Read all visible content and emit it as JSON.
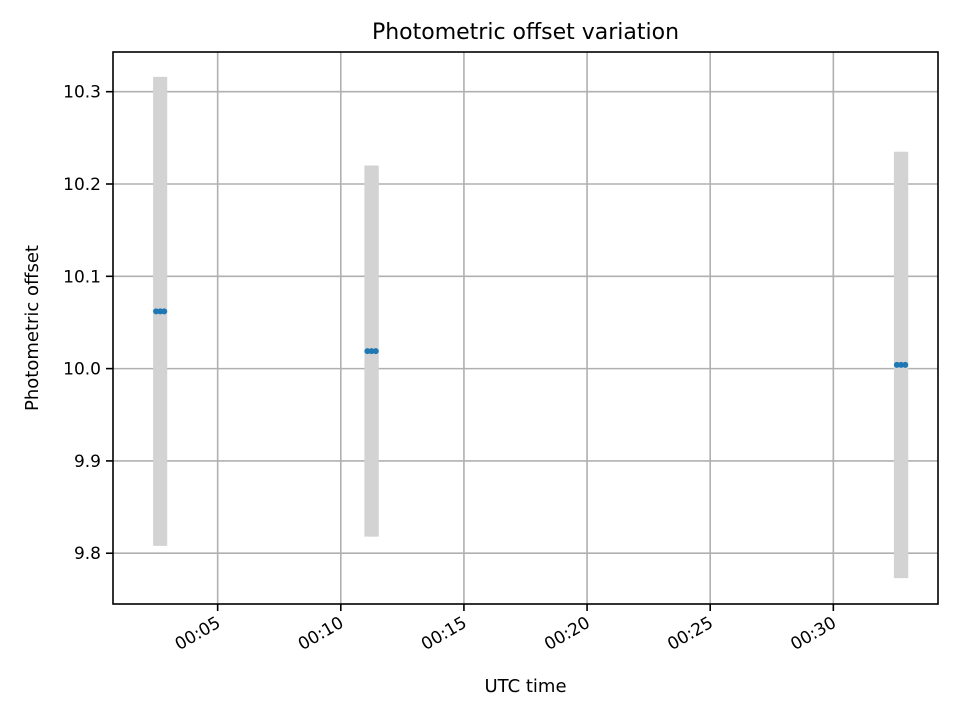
{
  "chart_data": {
    "type": "scatter",
    "title": "Photometric offset variation",
    "xlabel": "UTC time",
    "ylabel": "Photometric offset",
    "x_unit": "minutes after 00:00 UTC",
    "xlim": [
      0.75,
      34.25
    ],
    "ylim": [
      9.745,
      10.343
    ],
    "grid": true,
    "colors": {
      "points": "#1f77b4",
      "errorbars": "#d3d3d3"
    },
    "xticks": [
      {
        "value": 5,
        "label": "00:05"
      },
      {
        "value": 10,
        "label": "00:10"
      },
      {
        "value": 15,
        "label": "00:15"
      },
      {
        "value": 20,
        "label": "00:20"
      },
      {
        "value": 25,
        "label": "00:25"
      },
      {
        "value": 30,
        "label": "00:30"
      }
    ],
    "yticks": [
      {
        "value": 9.8,
        "label": "9.8"
      },
      {
        "value": 9.9,
        "label": "9.9"
      },
      {
        "value": 10.0,
        "label": "10.0"
      },
      {
        "value": 10.1,
        "label": "10.1"
      },
      {
        "value": 10.2,
        "label": "10.2"
      },
      {
        "value": 10.3,
        "label": "10.3"
      }
    ],
    "points": [
      {
        "x": 2.5,
        "y": 10.062,
        "yerr": 0.254
      },
      {
        "x": 2.67,
        "y": 10.062,
        "yerr": 0.254
      },
      {
        "x": 2.83,
        "y": 10.062,
        "yerr": 0.254
      },
      {
        "x": 11.08,
        "y": 10.019,
        "yerr": 0.201
      },
      {
        "x": 11.25,
        "y": 10.019,
        "yerr": 0.201
      },
      {
        "x": 11.42,
        "y": 10.019,
        "yerr": 0.201
      },
      {
        "x": 32.58,
        "y": 10.004,
        "yerr": 0.231
      },
      {
        "x": 32.75,
        "y": 10.004,
        "yerr": 0.231
      },
      {
        "x": 32.92,
        "y": 10.004,
        "yerr": 0.231
      }
    ]
  }
}
